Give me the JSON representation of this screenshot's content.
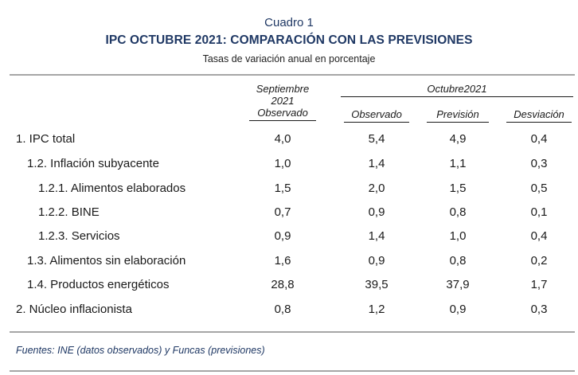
{
  "caption": {
    "label": "Cuadro 1",
    "title": "IPC OCTUBRE 2021: COMPARACIÓN CON LAS PREVISIONES",
    "subtitle": "Tasas de variación anual en porcentaje"
  },
  "header": {
    "col1_line1": "Septiembre",
    "col1_line2": "2021",
    "col1_line3": "Observado",
    "group_label": "Octubre2021",
    "col2": "Observado",
    "col3": "Previsión",
    "col4": "Desviación"
  },
  "rows": [
    {
      "label": "1. IPC total",
      "sep_obs": "4,0",
      "oct_obs": "5,4",
      "prev": "4,9",
      "desv": "0,4"
    },
    {
      "label": "1.2. Inflación subyacente",
      "sep_obs": "1,0",
      "oct_obs": "1,4",
      "prev": "1,1",
      "desv": "0,3"
    },
    {
      "label": "1.2.1. Alimentos elaborados",
      "sep_obs": "1,5",
      "oct_obs": "2,0",
      "prev": "1,5",
      "desv": "0,5"
    },
    {
      "label": "1.2.2. BINE",
      "sep_obs": "0,7",
      "oct_obs": "0,9",
      "prev": "0,8",
      "desv": "0,1"
    },
    {
      "label": "1.2.3. Servicios",
      "sep_obs": "0,9",
      "oct_obs": "1,4",
      "prev": "1,0",
      "desv": "0,4"
    },
    {
      "label": "1.3. Alimentos sin elaboración",
      "sep_obs": "1,6",
      "oct_obs": "0,9",
      "prev": "0,8",
      "desv": "0,2"
    },
    {
      "label": "1.4. Productos energéticos",
      "sep_obs": "28,8",
      "oct_obs": "39,5",
      "prev": "37,9",
      "desv": "1,7"
    },
    {
      "label": "2. Núcleo inflacionista",
      "sep_obs": "0,8",
      "oct_obs": "1,2",
      "prev": "0,9",
      "desv": "0,3"
    }
  ],
  "footnote": "Fuentes: INE (datos observados) y Funcas (previsiones)"
}
